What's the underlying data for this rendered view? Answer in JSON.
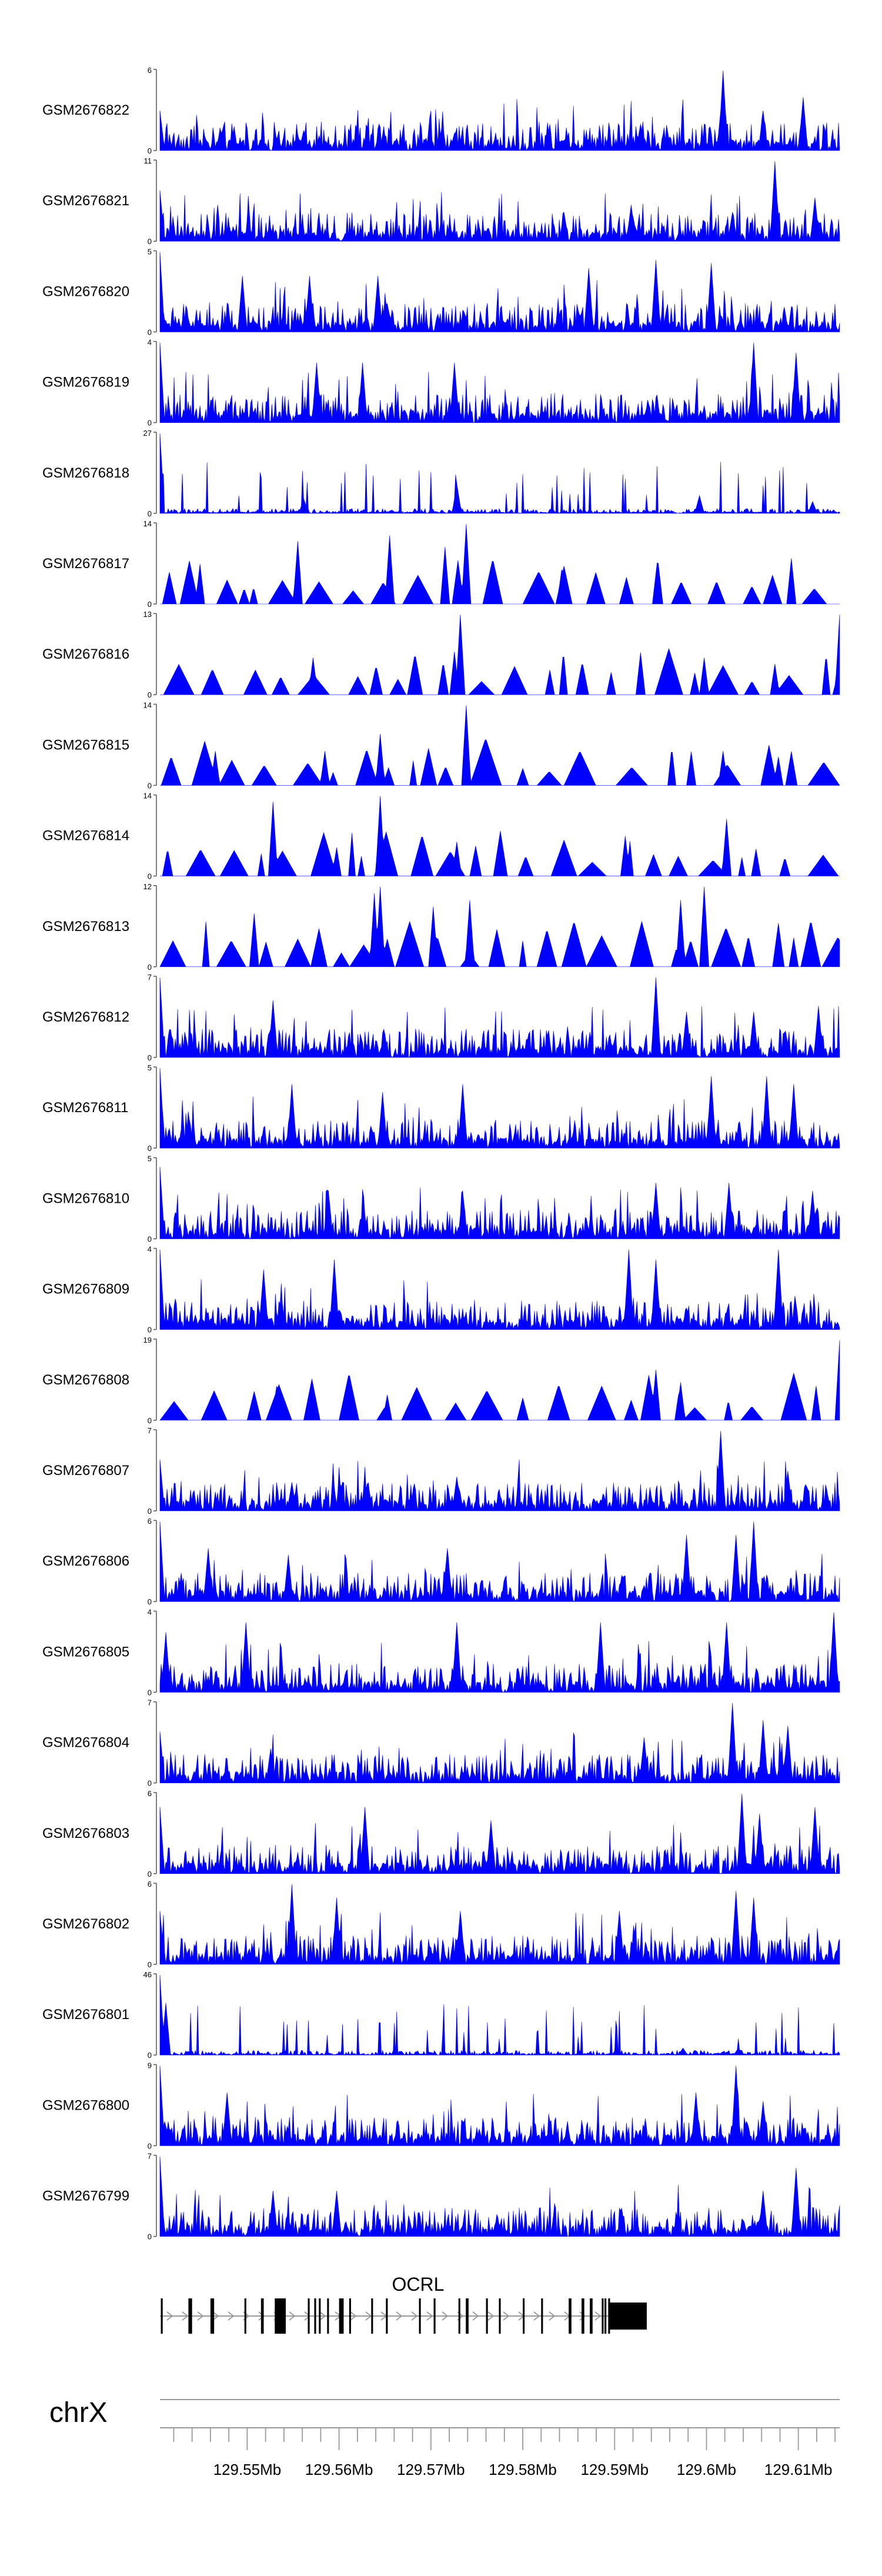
{
  "chart_data": {
    "type": "area",
    "title": "",
    "region": {
      "chromosome": "chrX",
      "start_mb": 129.5405,
      "end_mb": 129.6145
    },
    "fill_color": "#0000ff",
    "x_axis": {
      "unit": "Mb",
      "ticks": [
        129.55,
        129.56,
        129.57,
        129.58,
        129.59,
        129.6,
        129.61
      ],
      "tick_labels": [
        "129.55Mb",
        "129.56Mb",
        "129.57Mb",
        "129.58Mb",
        "129.59Mb",
        "129.6Mb",
        "129.61Mb"
      ]
    },
    "series": [
      {
        "name": "GSM2676822",
        "ymax": 6,
        "ymax_label": "6",
        "peaks": [
          [
            129.5405,
            3
          ],
          [
            129.5928,
            2
          ],
          [
            129.6018,
            6
          ],
          [
            129.6062,
            3
          ],
          [
            129.6105,
            4
          ],
          [
            129.5562,
            1.5
          ],
          [
            129.5725,
            1.3
          ]
        ]
      },
      {
        "name": "GSM2676821",
        "ymax": 11,
        "ymax_label": "11",
        "peaks": [
          [
            129.5405,
            7
          ],
          [
            129.6075,
            11
          ],
          [
            129.6028,
            4
          ],
          [
            129.6118,
            6
          ],
          [
            129.5918,
            5
          ],
          [
            129.5845,
            4
          ]
        ]
      },
      {
        "name": "GSM2676820",
        "ymax": 5,
        "ymax_label": "5",
        "peaks": [
          [
            129.5405,
            5
          ],
          [
            129.5945,
            4.5
          ],
          [
            129.6005,
            4.3
          ],
          [
            129.5642,
            3.5
          ],
          [
            129.5872,
            4
          ],
          [
            129.5568,
            3.5
          ],
          [
            129.5495,
            3.5
          ]
        ]
      },
      {
        "name": "GSM2676819",
        "ymax": 4,
        "ymax_label": "4",
        "peaks": [
          [
            129.5405,
            4
          ],
          [
            129.6052,
            4
          ],
          [
            129.5575,
            3
          ],
          [
            129.6098,
            3.5
          ],
          [
            129.5625,
            3
          ],
          [
            129.5725,
            3
          ]
        ]
      },
      {
        "name": "GSM2676818",
        "ymax": 27,
        "ymax_label": "27",
        "peaks": [
          [
            129.5405,
            27
          ],
          [
            129.5728,
            10
          ],
          [
            129.5992,
            6
          ],
          [
            129.5562,
            5
          ],
          [
            129.6115,
            4
          ]
        ]
      },
      {
        "name": "GSM2676817",
        "ymax": 14,
        "ymax_label": "14",
        "peaks": [
          [
            129.5738,
            14
          ],
          [
            129.5655,
            12
          ],
          [
            129.5555,
            11
          ],
          [
            129.5715,
            10
          ],
          [
            129.6092,
            8
          ],
          [
            129.5448,
            7
          ],
          [
            129.5842,
            6
          ]
        ]
      },
      {
        "name": "GSM2676816",
        "ymax": 13,
        "ymax_label": "13",
        "peaks": [
          [
            129.5732,
            13
          ],
          [
            129.5725,
            7
          ],
          [
            129.5572,
            6
          ],
          [
            129.6145,
            13
          ],
          [
            129.5998,
            6
          ],
          [
            129.6075,
            5
          ]
        ]
      },
      {
        "name": "GSM2676815",
        "ymax": 14,
        "ymax_label": "14",
        "peaks": [
          [
            129.5738,
            14
          ],
          [
            129.5645,
            9
          ],
          [
            129.5585,
            6
          ],
          [
            129.5465,
            6
          ],
          [
            129.6018,
            6
          ],
          [
            129.6078,
            5
          ]
        ]
      },
      {
        "name": "GSM2676814",
        "ymax": 14,
        "ymax_label": "14",
        "peaks": [
          [
            129.5528,
            13
          ],
          [
            129.5645,
            14
          ],
          [
            129.5728,
            6
          ],
          [
            129.5912,
            7
          ],
          [
            129.6022,
            10
          ],
          [
            129.5598,
            5
          ]
        ]
      },
      {
        "name": "GSM2676813",
        "ymax": 12,
        "ymax_label": "12",
        "peaks": [
          [
            129.5645,
            12
          ],
          [
            129.5638,
            11
          ],
          [
            129.5742,
            10
          ],
          [
            129.5702,
            9
          ],
          [
            129.5998,
            12
          ],
          [
            129.5972,
            10
          ],
          [
            129.5508,
            8
          ]
        ]
      },
      {
        "name": "GSM2676812",
        "ymax": 7,
        "ymax_label": "7",
        "peaks": [
          [
            129.5405,
            7
          ],
          [
            129.5528,
            5
          ],
          [
            129.5945,
            7
          ],
          [
            129.5978,
            4
          ],
          [
            129.6052,
            4
          ],
          [
            129.6122,
            4.5
          ]
        ]
      },
      {
        "name": "GSM2676811",
        "ymax": 5,
        "ymax_label": "5",
        "peaks": [
          [
            129.5405,
            5
          ],
          [
            129.5548,
            4
          ],
          [
            129.5735,
            4
          ],
          [
            129.6005,
            4.5
          ],
          [
            129.6065,
            4.5
          ],
          [
            129.6095,
            4
          ],
          [
            129.5648,
            3.5
          ]
        ]
      },
      {
        "name": "GSM2676810",
        "ymax": 5,
        "ymax_label": "5",
        "peaks": [
          [
            129.5405,
            4.5
          ],
          [
            129.5588,
            3
          ],
          [
            129.5735,
            3
          ],
          [
            129.5945,
            3.5
          ],
          [
            129.6025,
            3.5
          ],
          [
            129.6115,
            3
          ]
        ]
      },
      {
        "name": "GSM2676809",
        "ymax": 4,
        "ymax_label": "4",
        "peaks": [
          [
            129.5405,
            4
          ],
          [
            129.5595,
            3.5
          ],
          [
            129.5915,
            4
          ],
          [
            129.5945,
            3.5
          ],
          [
            129.6078,
            4
          ],
          [
            129.5518,
            3
          ]
        ]
      },
      {
        "name": "GSM2676808",
        "ymax": 19,
        "ymax_label": "19",
        "peaks": [
          [
            129.6145,
            19
          ],
          [
            129.5945,
            12
          ],
          [
            129.5532,
            8
          ],
          [
            129.5972,
            9
          ],
          [
            129.6092,
            9
          ],
          [
            129.5652,
            6
          ]
        ]
      },
      {
        "name": "GSM2676807",
        "ymax": 7,
        "ymax_label": "7",
        "peaks": [
          [
            129.6015,
            7
          ],
          [
            129.5405,
            4.5
          ],
          [
            129.6088,
            3.5
          ],
          [
            129.5728,
            3
          ],
          [
            129.5548,
            2.5
          ]
        ]
      },
      {
        "name": "GSM2676806",
        "ymax": 6,
        "ymax_label": "6",
        "peaks": [
          [
            129.5405,
            6
          ],
          [
            129.5458,
            4
          ],
          [
            129.5718,
            4
          ],
          [
            129.6032,
            5
          ],
          [
            129.6052,
            6
          ],
          [
            129.5978,
            5
          ],
          [
            129.5545,
            3.5
          ]
        ]
      },
      {
        "name": "GSM2676805",
        "ymax": 4,
        "ymax_label": "4",
        "peaks": [
          [
            129.5412,
            3
          ],
          [
            129.5498,
            3.5
          ],
          [
            129.5728,
            3.5
          ],
          [
            129.5885,
            3.5
          ],
          [
            129.6022,
            3.5
          ],
          [
            129.6138,
            4
          ]
        ]
      },
      {
        "name": "GSM2676804",
        "ymax": 7,
        "ymax_label": "7",
        "peaks": [
          [
            129.5405,
            4.5
          ],
          [
            129.5525,
            3
          ],
          [
            129.6028,
            7
          ],
          [
            129.6062,
            5.5
          ],
          [
            129.6088,
            5
          ],
          [
            129.5932,
            4
          ]
        ]
      },
      {
        "name": "GSM2676803",
        "ymax": 6,
        "ymax_label": "6",
        "peaks": [
          [
            129.5405,
            5
          ],
          [
            129.5628,
            5
          ],
          [
            129.5765,
            4
          ],
          [
            129.6038,
            6
          ],
          [
            129.6058,
            4.5
          ],
          [
            129.6118,
            5
          ]
        ]
      },
      {
        "name": "GSM2676802",
        "ymax": 6,
        "ymax_label": "6",
        "peaks": [
          [
            129.5548,
            6
          ],
          [
            129.5598,
            5
          ],
          [
            129.5732,
            4
          ],
          [
            129.6032,
            5.5
          ],
          [
            129.6052,
            5
          ],
          [
            129.5905,
            4
          ],
          [
            129.5405,
            4
          ]
        ]
      },
      {
        "name": "GSM2676801",
        "ymax": 46,
        "ymax_label": "46",
        "peaks": [
          [
            129.5405,
            46
          ],
          [
            129.5412,
            30
          ],
          [
            129.5975,
            4
          ],
          [
            129.6035,
            4
          ]
        ]
      },
      {
        "name": "GSM2676800",
        "ymax": 9,
        "ymax_label": "9",
        "peaks": [
          [
            129.5405,
            9
          ],
          [
            129.6032,
            9
          ],
          [
            129.5478,
            6
          ],
          [
            129.5988,
            6
          ],
          [
            129.6062,
            5
          ]
        ]
      },
      {
        "name": "GSM2676799",
        "ymax": 7,
        "ymax_label": "7",
        "peaks": [
          [
            129.5405,
            7
          ],
          [
            129.6098,
            6
          ],
          [
            129.5598,
            4
          ],
          [
            129.5528,
            4
          ],
          [
            129.6062,
            4
          ]
        ]
      }
    ],
    "gene": {
      "name": "OCRL",
      "start_mb": 129.5405,
      "end_mb": 129.5935,
      "strand": "+",
      "exons": [
        [
          129.5406,
          129.5408
        ],
        [
          129.5436,
          129.544
        ],
        [
          129.546,
          129.5464
        ],
        [
          129.5497,
          129.5499
        ],
        [
          129.5515,
          129.5518
        ],
        [
          129.553,
          129.5542
        ],
        [
          129.5566,
          129.5568
        ],
        [
          129.5573,
          129.5575
        ],
        [
          129.5578,
          129.558
        ],
        [
          129.5587,
          129.5589
        ],
        [
          129.56,
          129.5605
        ],
        [
          129.5611,
          129.5613
        ],
        [
          129.5635,
          129.5637
        ],
        [
          129.5651,
          129.5653
        ],
        [
          129.5687,
          129.5689
        ],
        [
          129.5703,
          129.5705
        ],
        [
          129.573,
          129.5732
        ],
        [
          129.5738,
          129.5741
        ],
        [
          129.576,
          129.5762
        ],
        [
          129.5774,
          129.5776
        ],
        [
          129.58,
          129.5802
        ],
        [
          129.582,
          129.5822
        ],
        [
          129.585,
          129.5853
        ],
        [
          129.5864,
          129.5867
        ],
        [
          129.5873,
          129.5876
        ],
        [
          129.5886,
          129.5888
        ],
        [
          129.5889,
          129.5891
        ],
        [
          129.5893,
          129.5895
        ],
        [
          129.5895,
          129.5935
        ]
      ]
    },
    "chromosome_label": "chrX"
  }
}
